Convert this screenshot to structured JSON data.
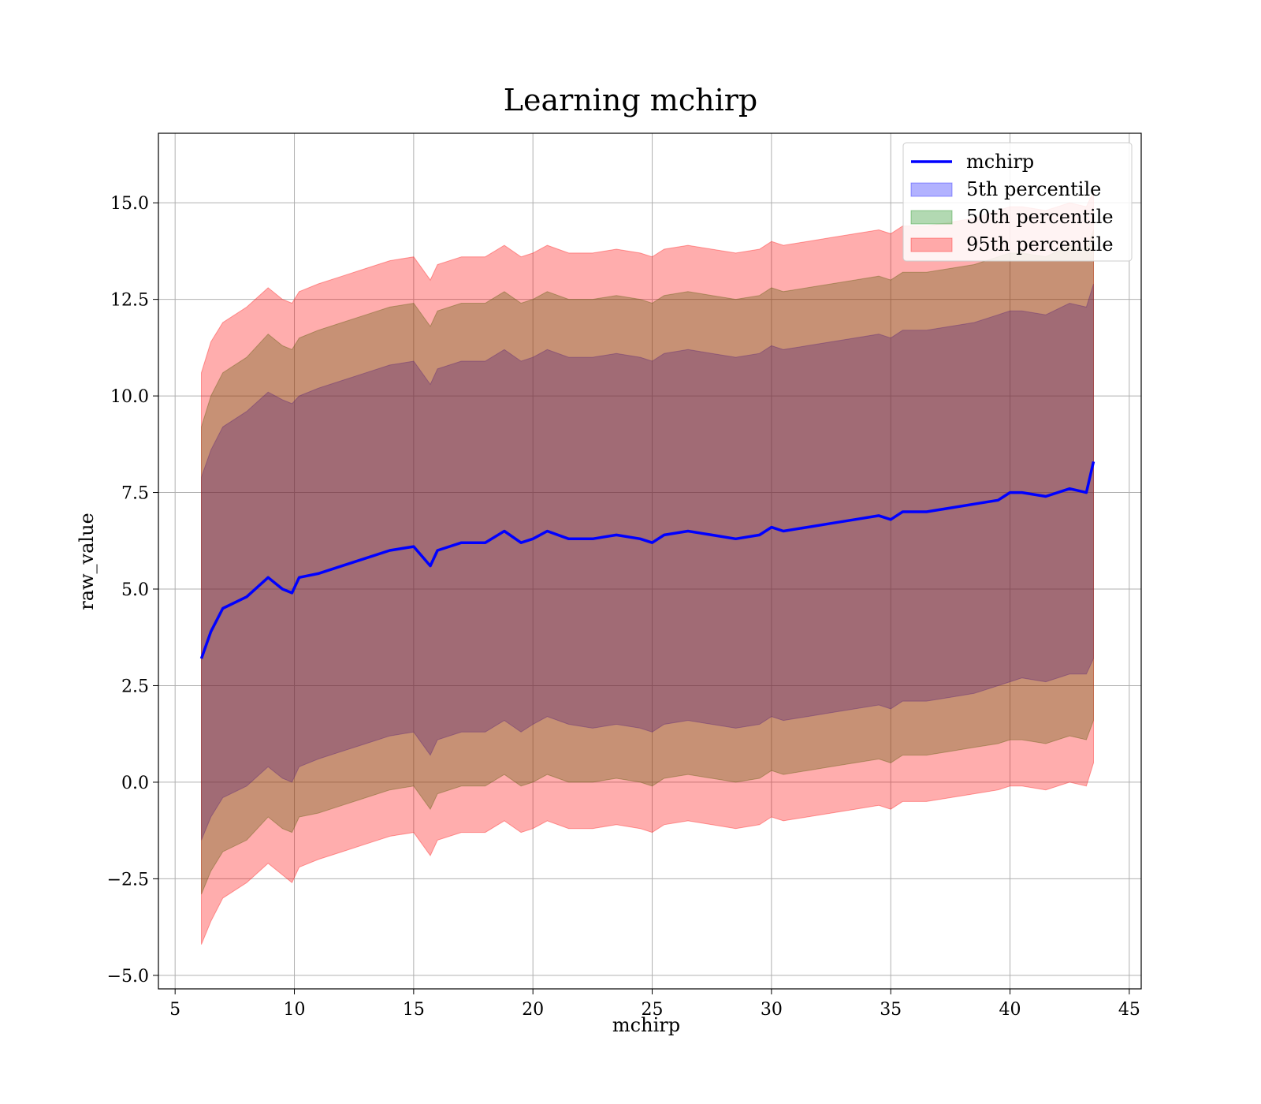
{
  "chart_data": {
    "type": "area",
    "title": "Learning mchirp",
    "xlabel": "mchirp",
    "ylabel": "raw_value",
    "xlim": [
      4.3,
      45.5
    ],
    "ylim": [
      -5.35,
      16.8
    ],
    "xticks": [
      5,
      10,
      15,
      20,
      25,
      30,
      35,
      40,
      45
    ],
    "yticks": [
      -5.0,
      -2.5,
      0.0,
      2.5,
      5.0,
      7.5,
      10.0,
      12.5,
      15.0
    ],
    "xtick_labels": [
      "5",
      "10",
      "15",
      "20",
      "25",
      "30",
      "35",
      "40",
      "45"
    ],
    "ytick_labels": [
      "−5.0",
      "−2.5",
      "0.0",
      "2.5",
      "5.0",
      "7.5",
      "10.0",
      "12.5",
      "15.0"
    ],
    "grid": true,
    "legend_position": "top-right",
    "x": [
      6.1,
      6.5,
      7,
      8,
      8.9,
      9.5,
      9.9,
      10.2,
      11,
      12,
      13,
      14,
      15,
      15.7,
      16,
      17,
      18,
      18.8,
      19.5,
      20,
      20.6,
      21.5,
      22.5,
      23.5,
      24.5,
      25,
      25.5,
      26.5,
      27.5,
      28.5,
      29.5,
      30,
      30.5,
      31.5,
      32.5,
      33.5,
      34.5,
      35,
      35.5,
      36.5,
      37.5,
      38.5,
      39.5,
      40,
      40.5,
      41.5,
      42.5,
      43.2,
      43.5
    ],
    "series": [
      {
        "name": "mchirp",
        "kind": "line",
        "color": "#0000ff",
        "values": [
          3.2,
          3.9,
          4.5,
          4.8,
          5.3,
          5.0,
          4.9,
          5.3,
          5.4,
          5.6,
          5.8,
          6.0,
          6.1,
          5.6,
          6.0,
          6.2,
          6.2,
          6.5,
          6.2,
          6.3,
          6.5,
          6.3,
          6.3,
          6.4,
          6.3,
          6.2,
          6.4,
          6.5,
          6.4,
          6.3,
          6.4,
          6.6,
          6.5,
          6.6,
          6.7,
          6.8,
          6.9,
          6.8,
          7.0,
          7.0,
          7.1,
          7.2,
          7.3,
          7.5,
          7.5,
          7.4,
          7.6,
          7.5,
          8.3
        ]
      },
      {
        "name": "5th percentile",
        "kind": "band",
        "color": "#0000ff",
        "values_low": [
          -1.5,
          -0.9,
          -0.4,
          -0.1,
          0.4,
          0.1,
          0.0,
          0.4,
          0.6,
          0.8,
          1.0,
          1.2,
          1.3,
          0.7,
          1.1,
          1.3,
          1.3,
          1.6,
          1.3,
          1.5,
          1.7,
          1.5,
          1.4,
          1.5,
          1.4,
          1.3,
          1.5,
          1.6,
          1.5,
          1.4,
          1.5,
          1.7,
          1.6,
          1.7,
          1.8,
          1.9,
          2.0,
          1.9,
          2.1,
          2.1,
          2.2,
          2.3,
          2.5,
          2.6,
          2.7,
          2.6,
          2.8,
          2.8,
          3.2
        ],
        "values_high": [
          7.9,
          8.6,
          9.2,
          9.6,
          10.1,
          9.9,
          9.8,
          10.0,
          10.2,
          10.4,
          10.6,
          10.8,
          10.9,
          10.3,
          10.7,
          10.9,
          10.9,
          11.2,
          10.9,
          11.0,
          11.2,
          11.0,
          11.0,
          11.1,
          11.0,
          10.9,
          11.1,
          11.2,
          11.1,
          11.0,
          11.1,
          11.3,
          11.2,
          11.3,
          11.4,
          11.5,
          11.6,
          11.5,
          11.7,
          11.7,
          11.8,
          11.9,
          12.1,
          12.2,
          12.2,
          12.1,
          12.4,
          12.3,
          12.9
        ]
      },
      {
        "name": "50th percentile",
        "kind": "band",
        "color": "#008000",
        "values_low": [
          -2.9,
          -2.3,
          -1.8,
          -1.5,
          -0.9,
          -1.2,
          -1.3,
          -0.9,
          -0.8,
          -0.6,
          -0.4,
          -0.2,
          -0.1,
          -0.7,
          -0.3,
          -0.1,
          -0.1,
          0.2,
          -0.1,
          0.0,
          0.2,
          0.0,
          0.0,
          0.1,
          0.0,
          -0.1,
          0.1,
          0.2,
          0.1,
          0.0,
          0.1,
          0.3,
          0.2,
          0.3,
          0.4,
          0.5,
          0.6,
          0.5,
          0.7,
          0.7,
          0.8,
          0.9,
          1.0,
          1.1,
          1.1,
          1.0,
          1.2,
          1.1,
          1.6
        ],
        "values_high": [
          9.2,
          10.0,
          10.6,
          11.0,
          11.6,
          11.3,
          11.2,
          11.5,
          11.7,
          11.9,
          12.1,
          12.3,
          12.4,
          11.8,
          12.2,
          12.4,
          12.4,
          12.7,
          12.4,
          12.5,
          12.7,
          12.5,
          12.5,
          12.6,
          12.5,
          12.4,
          12.6,
          12.7,
          12.6,
          12.5,
          12.6,
          12.8,
          12.7,
          12.8,
          12.9,
          13.0,
          13.1,
          13.0,
          13.2,
          13.2,
          13.3,
          13.4,
          13.6,
          13.7,
          13.7,
          13.6,
          13.9,
          13.8,
          14.3
        ]
      },
      {
        "name": "95th percentile",
        "kind": "band",
        "color": "#ff0000",
        "values_low": [
          -4.2,
          -3.6,
          -3.0,
          -2.6,
          -2.1,
          -2.4,
          -2.6,
          -2.2,
          -2.0,
          -1.8,
          -1.6,
          -1.4,
          -1.3,
          -1.9,
          -1.5,
          -1.3,
          -1.3,
          -1.0,
          -1.3,
          -1.2,
          -1.0,
          -1.2,
          -1.2,
          -1.1,
          -1.2,
          -1.3,
          -1.1,
          -1.0,
          -1.1,
          -1.2,
          -1.1,
          -0.9,
          -1.0,
          -0.9,
          -0.8,
          -0.7,
          -0.6,
          -0.7,
          -0.5,
          -0.5,
          -0.4,
          -0.3,
          -0.2,
          -0.1,
          -0.1,
          -0.2,
          0.0,
          -0.1,
          0.5
        ],
        "values_high": [
          10.6,
          11.4,
          11.9,
          12.3,
          12.8,
          12.5,
          12.4,
          12.7,
          12.9,
          13.1,
          13.3,
          13.5,
          13.6,
          13.0,
          13.4,
          13.6,
          13.6,
          13.9,
          13.6,
          13.7,
          13.9,
          13.7,
          13.7,
          13.8,
          13.7,
          13.6,
          13.8,
          13.9,
          13.8,
          13.7,
          13.8,
          14.0,
          13.9,
          14.0,
          14.1,
          14.2,
          14.3,
          14.2,
          14.4,
          14.4,
          14.5,
          14.6,
          14.8,
          14.9,
          14.9,
          14.8,
          15.0,
          14.9,
          15.3
        ]
      }
    ]
  }
}
